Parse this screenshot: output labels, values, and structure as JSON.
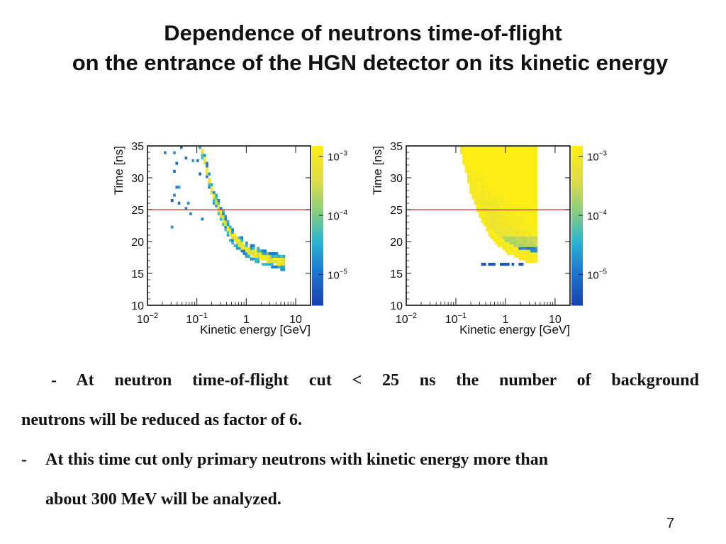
{
  "slide": {
    "title_line1": "Dependence of neutrons time-of-flight",
    "title_line2": "on the entrance of the HGN detector on its kinetic energy",
    "bullet1_line1": "- At neutron time-of-flight cut < 25 ns the number of background",
    "bullet1_line2": "neutrons will be reduced as factor of 6.",
    "bullet2_dash": "-",
    "bullet2_line1": "At this time cut only primary neutrons with kinetic energy more than",
    "bullet2_line2": "about 300 MeV will be analyzed.",
    "page_number": "7"
  },
  "chart_data": [
    {
      "type": "heatmap",
      "xlabel": "Kinetic energy [GeV]",
      "ylabel": "Time [ns]",
      "x_scale": "log",
      "xlim": [
        0.01,
        20
      ],
      "ylim": [
        10,
        35
      ],
      "x_ticks": [
        {
          "value": 0.01,
          "base": "10",
          "exp": "−2"
        },
        {
          "value": 0.1,
          "base": "10",
          "exp": "−1"
        },
        {
          "value": 1,
          "label": "1"
        },
        {
          "value": 10,
          "label": "10"
        }
      ],
      "y_ticks": [
        10,
        15,
        20,
        25,
        30,
        35
      ],
      "colorbar": {
        "scale": "log",
        "range": [
          3e-06,
          0.0015
        ],
        "ticks": [
          {
            "value": 0.001,
            "base": "10",
            "exp": "−3"
          },
          {
            "value": 0.0001,
            "base": "10",
            "exp": "−4"
          },
          {
            "value": 1e-05,
            "base": "10",
            "exp": "−5"
          }
        ]
      },
      "cut_line": {
        "y": 25,
        "color": "#e0332a"
      },
      "distribution": "narrow band of primary neutrons along the time-of-flight curve (~33 ns at 0.13 GeV, ~20 ns at 0.6 GeV, ~17 ns at 3 GeV) plus a few isolated low-energy cells",
      "band_center": [
        {
          "e": 0.12,
          "t": 35
        },
        {
          "e": 0.15,
          "t": 32
        },
        {
          "e": 0.2,
          "t": 28
        },
        {
          "e": 0.3,
          "t": 24.5
        },
        {
          "e": 0.5,
          "t": 21
        },
        {
          "e": 1,
          "t": 18.8
        },
        {
          "e": 2,
          "t": 17.6
        },
        {
          "e": 5,
          "t": 16.8
        }
      ]
    },
    {
      "type": "heatmap",
      "xlabel": "Kinetic energy [GeV]",
      "ylabel": "Time [ns]",
      "x_scale": "log",
      "xlim": [
        0.01,
        20
      ],
      "ylim": [
        10,
        35
      ],
      "x_ticks": [
        {
          "value": 0.01,
          "base": "10",
          "exp": "−2"
        },
        {
          "value": 0.1,
          "base": "10",
          "exp": "−1"
        },
        {
          "value": 1,
          "label": "1"
        },
        {
          "value": 10,
          "label": "10"
        }
      ],
      "y_ticks": [
        10,
        15,
        20,
        25,
        30,
        35
      ],
      "colorbar": {
        "scale": "log",
        "range": [
          3e-06,
          0.0015
        ],
        "ticks": [
          {
            "value": 0.001,
            "base": "10",
            "exp": "−3"
          },
          {
            "value": 0.0001,
            "base": "10",
            "exp": "−4"
          },
          {
            "value": 1e-05,
            "base": "10",
            "exp": "−5"
          }
        ]
      },
      "cut_line": {
        "y": 25,
        "color": "#e0332a"
      },
      "distribution": "broad background population filling the region above ~17 ns at low energies, bounded on the right by the primary-neutron time-of-flight curve",
      "band_center": [
        {
          "e": 0.12,
          "t": 35
        },
        {
          "e": 0.15,
          "t": 32
        },
        {
          "e": 0.2,
          "t": 28
        },
        {
          "e": 0.3,
          "t": 24.5
        },
        {
          "e": 0.5,
          "t": 21
        },
        {
          "e": 1,
          "t": 18.8
        },
        {
          "e": 2,
          "t": 17.6
        },
        {
          "e": 4,
          "t": 17
        }
      ]
    }
  ]
}
